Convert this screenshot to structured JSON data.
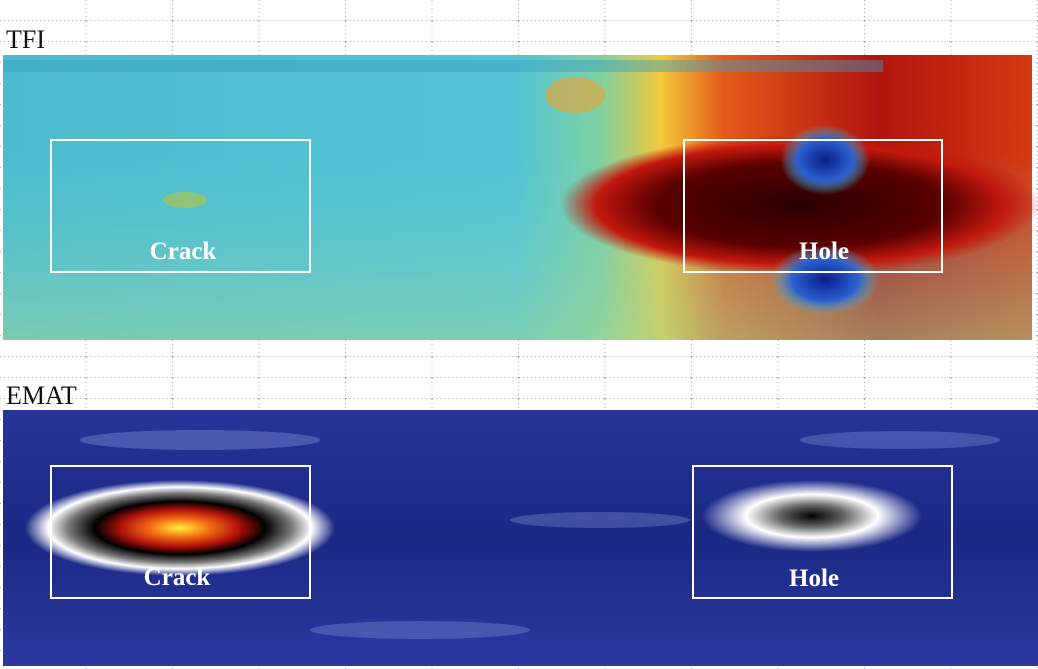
{
  "panels": [
    {
      "label": "TFI",
      "annotations": [
        "Crack",
        "Hole"
      ]
    },
    {
      "label": "EMAT",
      "annotations": [
        "Crack",
        "Hole"
      ]
    }
  ]
}
